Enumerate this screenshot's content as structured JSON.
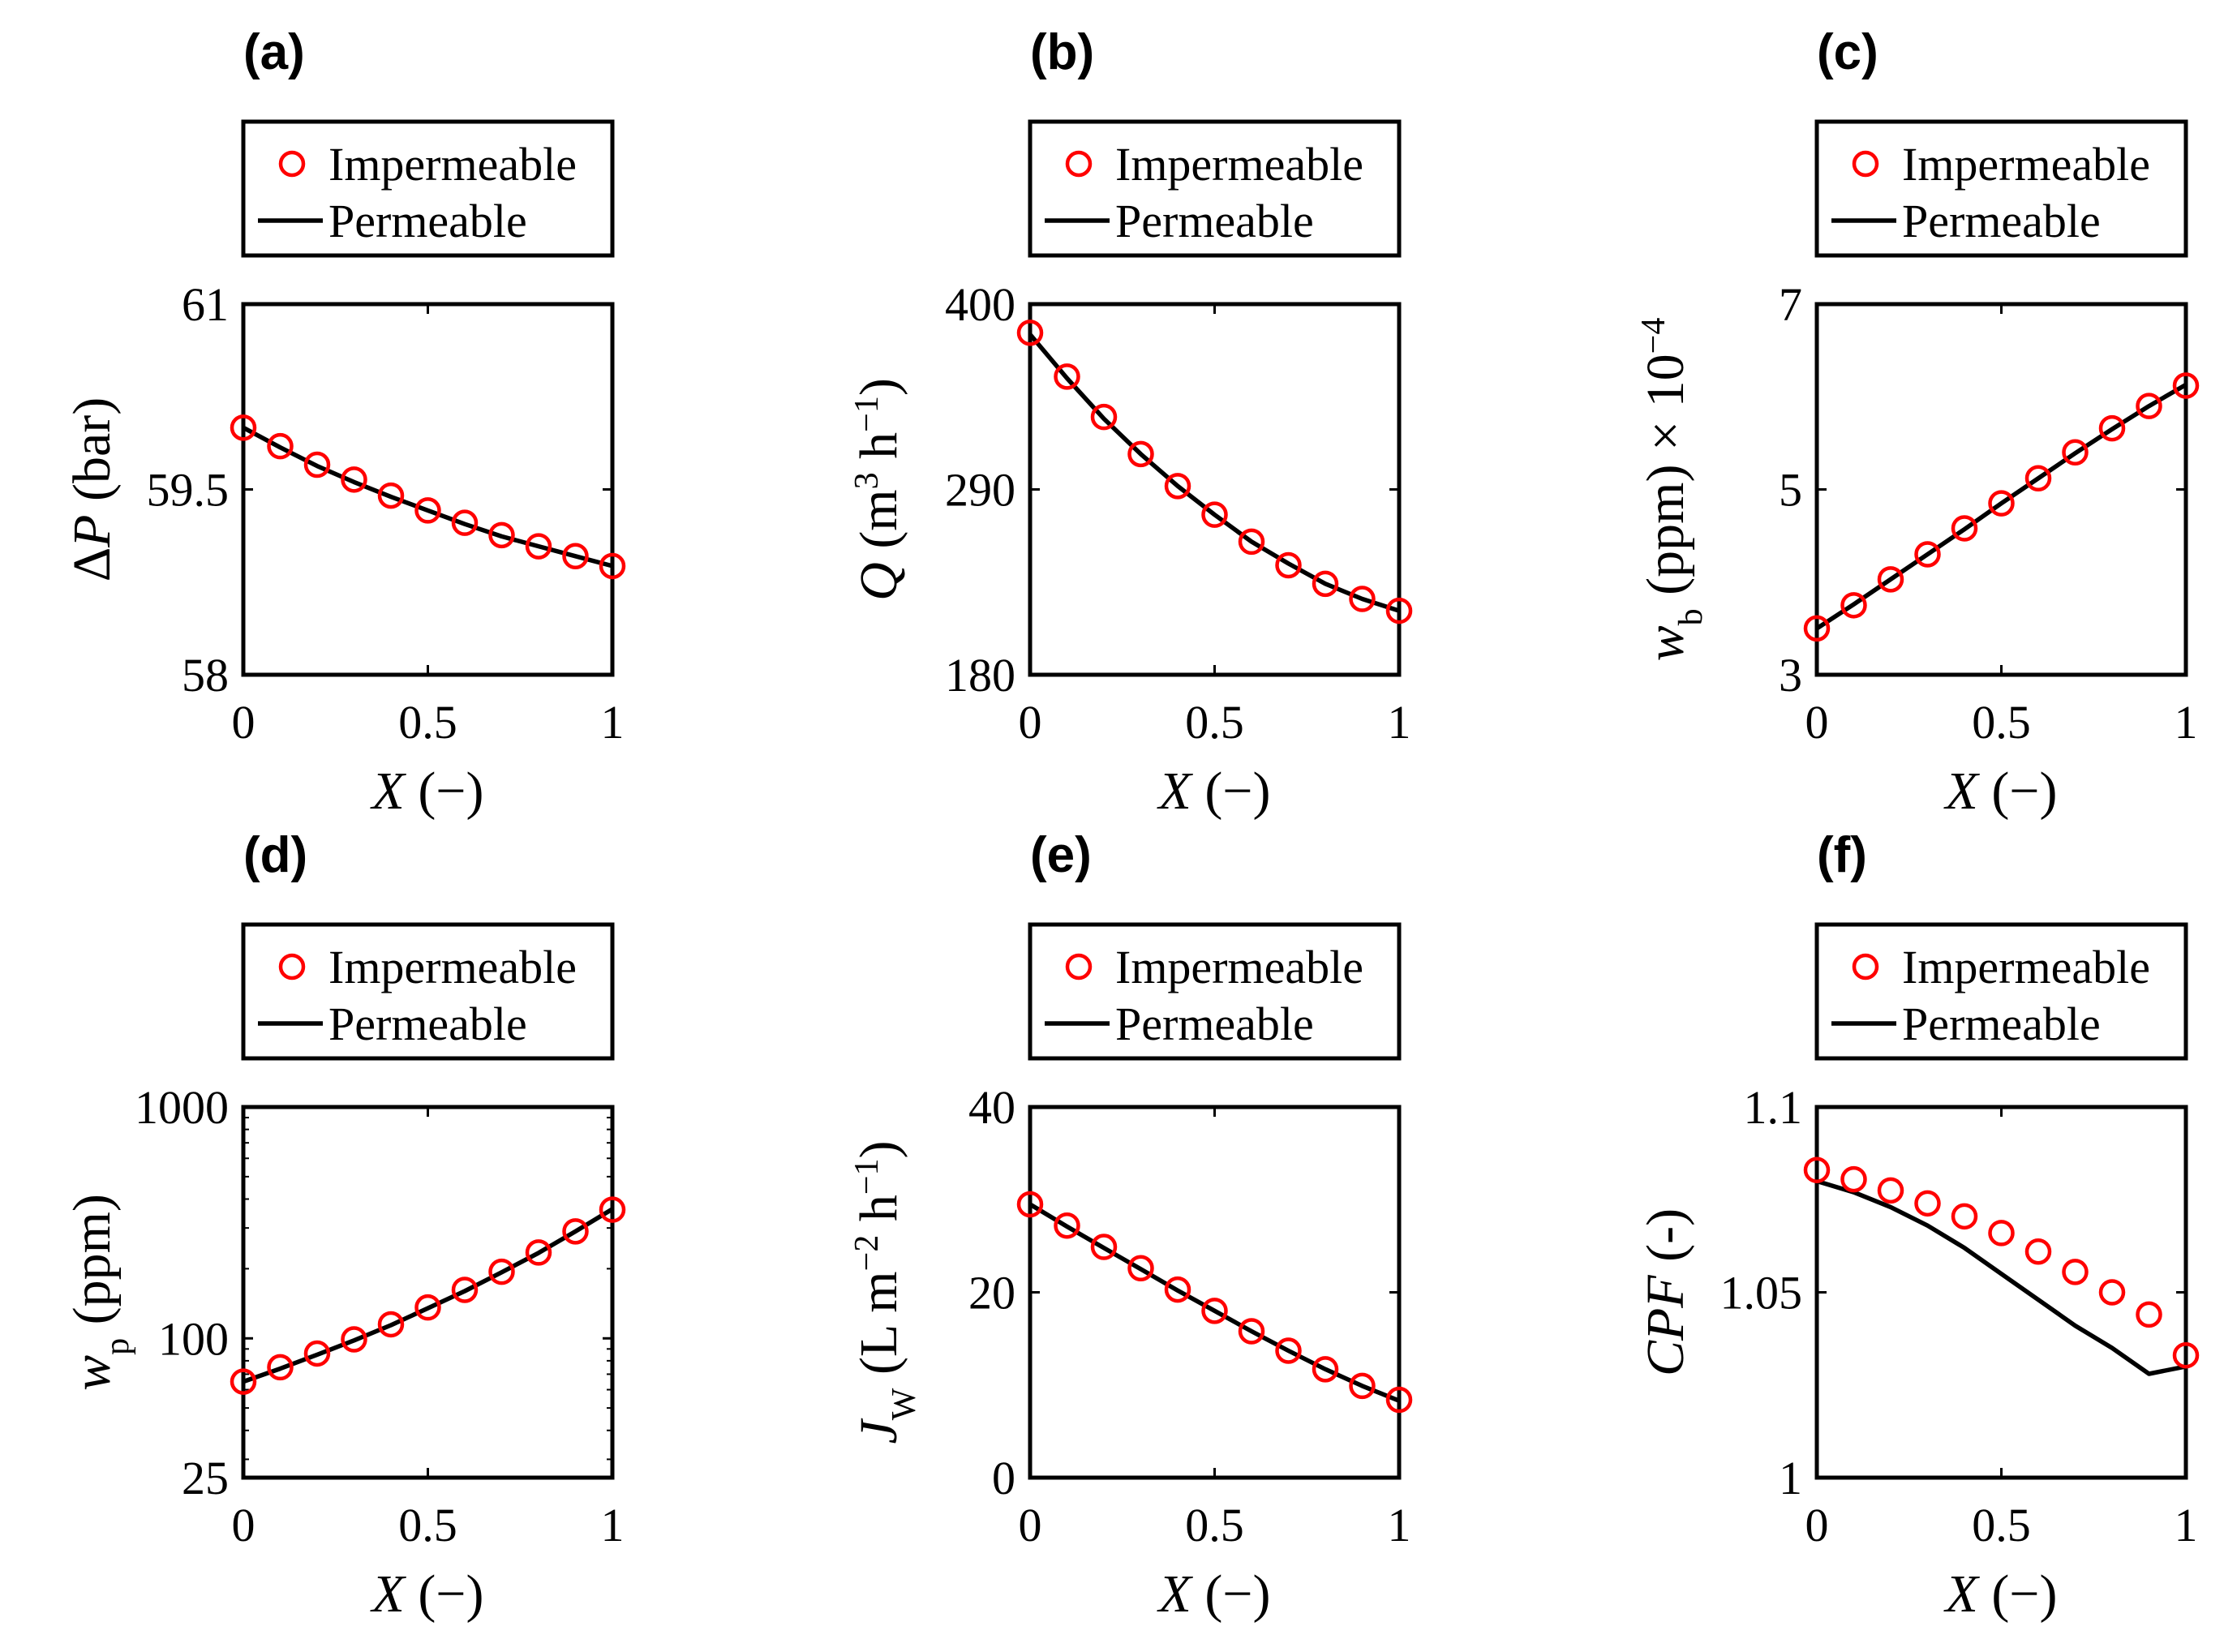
{
  "colors": {
    "marker": "#ff0000",
    "line": "#000000",
    "axis": "#000000",
    "background": "#ffffff"
  },
  "legend": {
    "marker_label": "Impermeable",
    "line_label": "Permeable"
  },
  "chart_data": [
    {
      "id": "a",
      "panel_label": "(a)",
      "type": "line",
      "yscale": "linear",
      "xlim": [
        0,
        1
      ],
      "ylim": [
        58,
        61
      ],
      "xticks": [
        0,
        0.5,
        1
      ],
      "xtick_labels": [
        "0",
        "0.5",
        "1"
      ],
      "yticks": [
        58,
        59.5,
        61
      ],
      "ytick_labels": [
        "58",
        "59.5",
        "61"
      ],
      "xlabel": "X (−)",
      "ylabel": "ΔP (bar)",
      "series": [
        {
          "name": "Impermeable",
          "style": "markers",
          "x": [
            0,
            0.1,
            0.2,
            0.3,
            0.4,
            0.5,
            0.6,
            0.7,
            0.8,
            0.9,
            1.0
          ],
          "y": [
            60.0,
            59.85,
            59.7,
            59.58,
            59.45,
            59.33,
            59.23,
            59.13,
            59.04,
            58.96,
            58.88
          ]
        },
        {
          "name": "Permeable",
          "style": "line",
          "x": [
            0,
            0.1,
            0.2,
            0.3,
            0.4,
            0.5,
            0.6,
            0.7,
            0.8,
            0.9,
            1.0
          ],
          "y": [
            60.0,
            59.84,
            59.69,
            59.56,
            59.44,
            59.33,
            59.22,
            59.12,
            59.04,
            58.96,
            58.88
          ]
        }
      ]
    },
    {
      "id": "b",
      "panel_label": "(b)",
      "type": "line",
      "yscale": "linear",
      "xlim": [
        0,
        1
      ],
      "ylim": [
        180,
        400
      ],
      "xticks": [
        0,
        0.5,
        1
      ],
      "xtick_labels": [
        "0",
        "0.5",
        "1"
      ],
      "yticks": [
        180,
        290,
        400
      ],
      "ytick_labels": [
        "180",
        "290",
        "400"
      ],
      "xlabel": "X (−)",
      "ylabel": "Q (m³ h⁻¹)",
      "series": [
        {
          "name": "Impermeable",
          "style": "markers",
          "x": [
            0,
            0.1,
            0.2,
            0.3,
            0.4,
            0.5,
            0.6,
            0.7,
            0.8,
            0.9,
            1.0
          ],
          "y": [
            383,
            357,
            333,
            311,
            292,
            275,
            259,
            245,
            234,
            225,
            218
          ]
        },
        {
          "name": "Permeable",
          "style": "line",
          "x": [
            0,
            0.1,
            0.2,
            0.3,
            0.4,
            0.5,
            0.6,
            0.7,
            0.8,
            0.9,
            1.0
          ],
          "y": [
            382,
            356,
            332,
            311,
            292,
            275,
            259,
            246,
            234,
            225,
            218
          ]
        }
      ]
    },
    {
      "id": "c",
      "panel_label": "(c)",
      "type": "line",
      "yscale": "linear",
      "xlim": [
        0,
        1
      ],
      "ylim": [
        3,
        7
      ],
      "xticks": [
        0,
        0.5,
        1
      ],
      "xtick_labels": [
        "0",
        "0.5",
        "1"
      ],
      "yticks": [
        3,
        5,
        7
      ],
      "ytick_labels": [
        "3",
        "5",
        "7"
      ],
      "xlabel": "X (−)",
      "ylabel": "w_b (ppm) × 10⁻⁴",
      "series": [
        {
          "name": "Impermeable",
          "style": "markers",
          "x": [
            0,
            0.1,
            0.2,
            0.3,
            0.4,
            0.5,
            0.6,
            0.7,
            0.8,
            0.9,
            1.0
          ],
          "y": [
            3.5,
            3.75,
            4.03,
            4.3,
            4.58,
            4.85,
            5.12,
            5.4,
            5.66,
            5.9,
            6.12
          ]
        },
        {
          "name": "Permeable",
          "style": "line",
          "x": [
            0,
            0.1,
            0.2,
            0.3,
            0.4,
            0.5,
            0.6,
            0.7,
            0.8,
            0.9,
            1.0
          ],
          "y": [
            3.5,
            3.76,
            4.03,
            4.3,
            4.57,
            4.85,
            5.12,
            5.39,
            5.65,
            5.9,
            6.13
          ]
        }
      ]
    },
    {
      "id": "d",
      "panel_label": "(d)",
      "type": "line",
      "yscale": "log",
      "xlim": [
        0,
        1
      ],
      "ylim": [
        25,
        1000
      ],
      "xticks": [
        0,
        0.5,
        1
      ],
      "xtick_labels": [
        "0",
        "0.5",
        "1"
      ],
      "yticks": [
        25,
        100,
        1000
      ],
      "ytick_labels": [
        "25",
        "100",
        "1000"
      ],
      "xlabel": "X (−)",
      "ylabel": "w_p (ppm)",
      "series": [
        {
          "name": "Impermeable",
          "style": "markers",
          "x": [
            0,
            0.1,
            0.2,
            0.3,
            0.4,
            0.5,
            0.6,
            0.7,
            0.8,
            0.9,
            1.0
          ],
          "y": [
            65,
            75,
            86,
            99,
            115,
            136,
            162,
            194,
            235,
            290,
            360
          ]
        },
        {
          "name": "Permeable",
          "style": "line",
          "x": [
            0,
            0.1,
            0.2,
            0.3,
            0.4,
            0.5,
            0.6,
            0.7,
            0.8,
            0.9,
            1.0
          ],
          "y": [
            65,
            74,
            85,
            98,
            114,
            135,
            160,
            193,
            234,
            290,
            362
          ]
        }
      ]
    },
    {
      "id": "e",
      "panel_label": "(e)",
      "type": "line",
      "yscale": "linear",
      "xlim": [
        0,
        1
      ],
      "ylim": [
        0,
        40
      ],
      "xticks": [
        0,
        0.5,
        1
      ],
      "xtick_labels": [
        "0",
        "0.5",
        "1"
      ],
      "yticks": [
        0,
        20,
        40
      ],
      "ytick_labels": [
        "0",
        "20",
        "40"
      ],
      "xlabel": "X (−)",
      "ylabel": "J_W (L m⁻² h⁻¹)",
      "series": [
        {
          "name": "Impermeable",
          "style": "markers",
          "x": [
            0,
            0.1,
            0.2,
            0.3,
            0.4,
            0.5,
            0.6,
            0.7,
            0.8,
            0.9,
            1.0
          ],
          "y": [
            29.5,
            27.2,
            24.9,
            22.6,
            20.3,
            18.0,
            15.8,
            13.7,
            11.7,
            9.9,
            8.4
          ]
        },
        {
          "name": "Permeable",
          "style": "line",
          "x": [
            0,
            0.1,
            0.2,
            0.3,
            0.4,
            0.5,
            0.6,
            0.7,
            0.8,
            0.9,
            1.0
          ],
          "y": [
            29.5,
            27.1,
            24.8,
            22.5,
            20.2,
            18.0,
            15.8,
            13.7,
            11.7,
            9.9,
            8.3
          ]
        }
      ]
    },
    {
      "id": "f",
      "panel_label": "(f)",
      "type": "line",
      "yscale": "linear",
      "xlim": [
        0,
        1
      ],
      "ylim": [
        1,
        1.1
      ],
      "xticks": [
        0,
        0.5,
        1
      ],
      "xtick_labels": [
        "0",
        "0.5",
        "1"
      ],
      "yticks": [
        1,
        1.05,
        1.1
      ],
      "ytick_labels": [
        "1",
        "1.05",
        "1.1"
      ],
      "xlabel": "X (−)",
      "ylabel": "CPF (-)",
      "series": [
        {
          "name": "Impermeable",
          "style": "markers",
          "x": [
            0,
            0.1,
            0.2,
            0.3,
            0.4,
            0.5,
            0.6,
            0.7,
            0.8,
            0.9,
            1.0
          ],
          "y": [
            1.083,
            1.0805,
            1.0775,
            1.074,
            1.0705,
            1.066,
            1.061,
            1.0555,
            1.05,
            1.044,
            1.033
          ]
        },
        {
          "name": "Permeable",
          "style": "line",
          "x": [
            0,
            0.1,
            0.2,
            0.3,
            0.4,
            0.5,
            0.6,
            0.7,
            0.8,
            0.9,
            1.0
          ],
          "y": [
            1.08,
            1.077,
            1.073,
            1.068,
            1.062,
            1.055,
            1.048,
            1.041,
            1.035,
            1.028,
            1.03
          ]
        }
      ]
    }
  ]
}
